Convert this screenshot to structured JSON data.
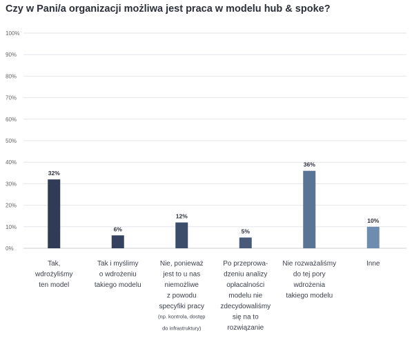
{
  "chart_data": {
    "type": "bar",
    "title": "Czy w Pani/a organizacji możliwa jest praca w modelu hub & spoke?",
    "xlabel": "",
    "ylabel": "",
    "ylim": [
      0,
      100
    ],
    "yticks": [
      "0%",
      "10%",
      "20%",
      "30%",
      "40%",
      "50%",
      "60%",
      "70%",
      "80%",
      "90%",
      "100%"
    ],
    "grid": true,
    "categories": [
      "Tak, wdrożyliśmy ten model",
      "Tak i myślimy o wdrożeniu takiego modelu",
      "Nie, ponieważ jest to u nas niemożliwe z powodu specyfiki pracy (np. kontrola, dostęp do infrastruktury)",
      "Po przeprowadzeniu analizy opłacalności modelu nie zdecydowaliśmy się na to rozwiązanie",
      "Nie rozważaliśmy do tej pory wdrożenia takiego modelu",
      "Inne"
    ],
    "category_lines": [
      [
        "Tak,",
        "wdrożyliśmy",
        "ten model"
      ],
      [
        "Tak i myślimy",
        "o wdrożeniu",
        "takiego modelu"
      ],
      [
        "Nie, ponieważ",
        "jest to u nas",
        "niemożliwe",
        "z powodu",
        "specyfiki pracy"
      ],
      [
        "Po przeprowa-",
        "dzeniu analizy",
        "opłacalności",
        "modelu nie",
        "zdecydowaliśmy",
        "się na to",
        "rozwiązanie"
      ],
      [
        "Nie rozważaliśmy",
        "do tej pory",
        "wdrożenia",
        "takiego modelu"
      ],
      [
        "Inne"
      ]
    ],
    "category_notes": [
      [],
      [],
      [
        "(np. kontrola, dostęp",
        "do infrastruktury)"
      ],
      [],
      [],
      []
    ],
    "values": [
      32,
      6,
      12,
      5,
      36,
      10
    ],
    "value_labels": [
      "32%",
      "6%",
      "12%",
      "5%",
      "36%",
      "10%"
    ],
    "colors": [
      "#2f3b57",
      "#34425f",
      "#3c4d6c",
      "#48597a",
      "#5a7496",
      "#6e8cb0"
    ]
  }
}
